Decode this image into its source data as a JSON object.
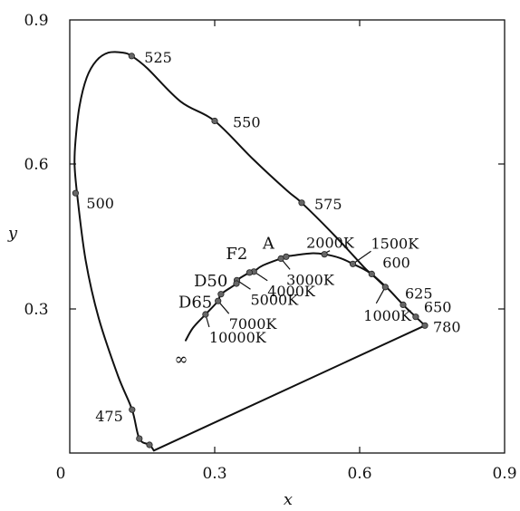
{
  "chart_data": {
    "type": "line",
    "title": "",
    "xlabel": "x",
    "ylabel": "y",
    "xlim": [
      0,
      0.9
    ],
    "ylim": [
      0,
      0.9
    ],
    "xticks": [
      "0",
      "0.3",
      "0.6",
      "0.9"
    ],
    "yticks": [
      "0.3",
      "0.6",
      "0.9"
    ],
    "grid": false,
    "series": [
      {
        "points": [
          [
            0.174,
            0.005
          ],
          [
            0.165,
            0.017
          ],
          [
            0.144,
            0.03
          ],
          [
            0.129,
            0.09
          ],
          [
            0.1,
            0.16
          ],
          [
            0.06,
            0.28
          ],
          [
            0.033,
            0.4
          ],
          [
            0.015,
            0.54
          ],
          [
            0.01,
            0.6
          ],
          [
            0.012,
            0.65
          ],
          [
            0.02,
            0.72
          ],
          [
            0.035,
            0.78
          ],
          [
            0.055,
            0.815
          ],
          [
            0.08,
            0.832
          ],
          [
            0.11,
            0.832
          ],
          [
            0.128,
            0.825
          ],
          [
            0.16,
            0.8
          ],
          [
            0.23,
            0.73
          ],
          [
            0.3,
            0.69
          ],
          [
            0.38,
            0.61
          ],
          [
            0.45,
            0.545
          ],
          [
            0.48,
            0.52
          ],
          [
            0.55,
            0.45
          ],
          [
            0.61,
            0.385
          ],
          [
            0.625,
            0.372
          ],
          [
            0.66,
            0.34
          ],
          [
            0.69,
            0.308
          ],
          [
            0.716,
            0.283
          ],
          [
            0.735,
            0.265
          ],
          [
            0.174,
            0.005
          ]
        ]
      },
      {
        "points": [
          [
            0.24,
            0.234
          ],
          [
            0.255,
            0.26
          ],
          [
            0.281,
            0.288
          ],
          [
            0.307,
            0.316
          ],
          [
            0.313,
            0.33
          ],
          [
            0.345,
            0.352
          ],
          [
            0.346,
            0.359
          ],
          [
            0.372,
            0.375
          ],
          [
            0.381,
            0.377
          ],
          [
            0.4,
            0.39
          ],
          [
            0.448,
            0.408
          ],
          [
            0.459,
            0.41
          ],
          [
            0.5,
            0.415
          ],
          [
            0.527,
            0.413
          ],
          [
            0.56,
            0.405
          ],
          [
            0.586,
            0.393
          ],
          [
            0.62,
            0.375
          ],
          [
            0.653,
            0.345
          ]
        ]
      }
    ],
    "locus_markers": [
      {
        "label": "525",
        "x": 0.128,
        "y": 0.825
      },
      {
        "label": "550",
        "x": 0.3,
        "y": 0.69
      },
      {
        "label": "575",
        "x": 0.48,
        "y": 0.52
      },
      {
        "label": "500",
        "x": 0.012,
        "y": 0.54
      },
      {
        "label": "600",
        "x": 0.625,
        "y": 0.372
      },
      {
        "label": "625",
        "x": 0.69,
        "y": 0.308
      },
      {
        "label": "650",
        "x": 0.716,
        "y": 0.283
      },
      {
        "label": "780",
        "x": 0.735,
        "y": 0.265
      },
      {
        "label": "475",
        "x": 0.129,
        "y": 0.09
      }
    ],
    "locus_extra_dots": [
      {
        "x": 0.165,
        "y": 0.017
      },
      {
        "x": 0.144,
        "y": 0.03
      }
    ],
    "planckian_markers": [
      {
        "label": "∞",
        "x": 0.24,
        "y": 0.234
      },
      {
        "label": "10000K",
        "x": 0.281,
        "y": 0.288
      },
      {
        "label": "7000K",
        "x": 0.307,
        "y": 0.316
      },
      {
        "label": "5000K",
        "x": 0.346,
        "y": 0.359
      },
      {
        "label": "4000K",
        "x": 0.381,
        "y": 0.377
      },
      {
        "label": "3000K",
        "x": 0.437,
        "y": 0.404
      },
      {
        "label": "2000K",
        "x": 0.527,
        "y": 0.413
      },
      {
        "label": "1500K",
        "x": 0.586,
        "y": 0.393
      },
      {
        "label": "1000K",
        "x": 0.653,
        "y": 0.345
      }
    ],
    "illuminants": [
      {
        "label": "D65",
        "x": 0.313,
        "y": 0.33
      },
      {
        "label": "D50",
        "x": 0.345,
        "y": 0.352
      },
      {
        "label": "F2",
        "x": 0.372,
        "y": 0.375
      },
      {
        "label": "A",
        "x": 0.448,
        "y": 0.408
      }
    ]
  }
}
